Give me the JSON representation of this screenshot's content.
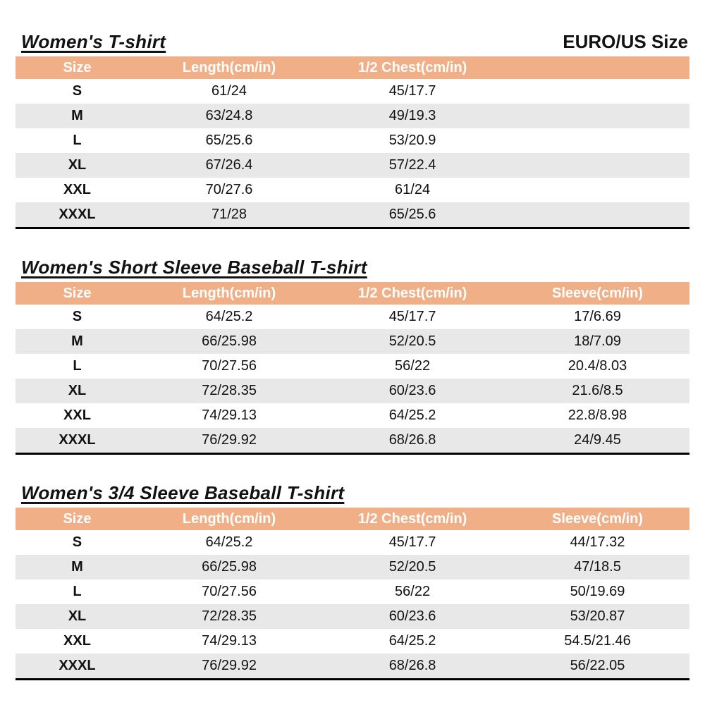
{
  "page": {
    "unit_label": "EURO/US Size"
  },
  "colors": {
    "header_bg": "#F1AF88",
    "header_text": "#FFFFFF",
    "row_alt_bg": "#E8E8E8",
    "row_bg": "#FFFFFF",
    "border": "#000000",
    "text": "#121212"
  },
  "tables": [
    {
      "title": "Women's T-shirt",
      "columns": [
        "Size",
        "Length(cm/in)",
        "1/2 Chest(cm/in)"
      ],
      "rows": [
        [
          "S",
          "61/24",
          "45/17.7"
        ],
        [
          "M",
          "63/24.8",
          "49/19.3"
        ],
        [
          "L",
          "65/25.6",
          "53/20.9"
        ],
        [
          "XL",
          "67/26.4",
          "57/22.4"
        ],
        [
          "XXL",
          "70/27.6",
          "61/24"
        ],
        [
          "XXXL",
          "71/28",
          "65/25.6"
        ]
      ]
    },
    {
      "title": "Women's Short Sleeve Baseball T-shirt",
      "columns": [
        "Size",
        "Length(cm/in)",
        "1/2 Chest(cm/in)",
        "Sleeve(cm/in)"
      ],
      "rows": [
        [
          "S",
          "64/25.2",
          "45/17.7",
          "17/6.69"
        ],
        [
          "M",
          "66/25.98",
          "52/20.5",
          "18/7.09"
        ],
        [
          "L",
          "70/27.56",
          "56/22",
          "20.4/8.03"
        ],
        [
          "XL",
          "72/28.35",
          "60/23.6",
          "21.6/8.5"
        ],
        [
          "XXL",
          "74/29.13",
          "64/25.2",
          "22.8/8.98"
        ],
        [
          "XXXL",
          "76/29.92",
          "68/26.8",
          "24/9.45"
        ]
      ]
    },
    {
      "title": "Women's 3/4 Sleeve Baseball T-shirt",
      "columns": [
        "Size",
        "Length(cm/in)",
        "1/2 Chest(cm/in)",
        "Sleeve(cm/in)"
      ],
      "rows": [
        [
          "S",
          "64/25.2",
          "45/17.7",
          "44/17.32"
        ],
        [
          "M",
          "66/25.98",
          "52/20.5",
          "47/18.5"
        ],
        [
          "L",
          "70/27.56",
          "56/22",
          "50/19.69"
        ],
        [
          "XL",
          "72/28.35",
          "60/23.6",
          "53/20.87"
        ],
        [
          "XXL",
          "74/29.13",
          "64/25.2",
          "54.5/21.46"
        ],
        [
          "XXXL",
          "76/29.92",
          "68/26.8",
          "56/22.05"
        ]
      ]
    }
  ]
}
